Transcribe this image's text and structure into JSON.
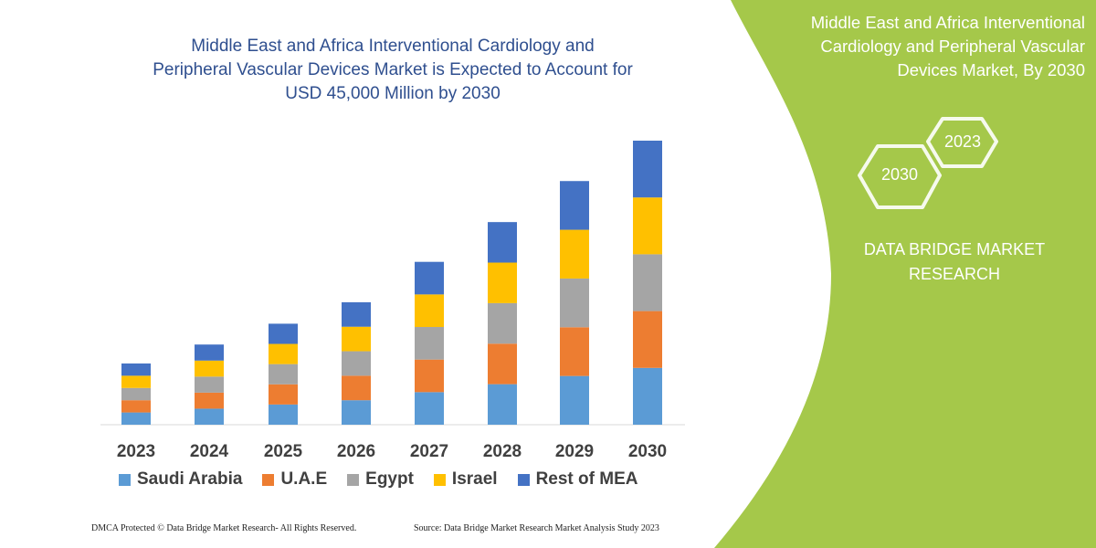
{
  "title": "Middle East and Africa Interventional Cardiology and Peripheral Vascular Devices Market is Expected to Account for USD 45,000 Million by 2030",
  "title_lines": [
    "Middle East and Africa Interventional Cardiology and",
    "Peripheral Vascular Devices Market is Expected to Account for",
    "USD 45,000 Million by 2030"
  ],
  "panel": {
    "title_lines": [
      "Middle East and Africa Interventional",
      "Cardiology and Peripheral Vascular",
      "Devices Market, By 2030"
    ],
    "hex_years": [
      "2023",
      "2030"
    ],
    "brand_lines": [
      "DATA BRIDGE MARKET",
      "RESEARCH"
    ],
    "color": "#a5c84a"
  },
  "footer": {
    "left": "DMCA Protected © Data Bridge Market Research-  All Rights Reserved.",
    "right": "Source: Data Bridge Market Research  Market Analysis Study 2023"
  },
  "chart_data": {
    "type": "bar",
    "stacked": true,
    "categories": [
      "2023",
      "2024",
      "2025",
      "2026",
      "2027",
      "2028",
      "2029",
      "2030"
    ],
    "series": [
      {
        "name": "Saudi Arabia",
        "color": "#5b9bd5",
        "values": [
          1940,
          2540,
          3200,
          3880,
          5160,
          6420,
          7720,
          9000
        ]
      },
      {
        "name": "U.A.E",
        "color": "#ed7d31",
        "values": [
          1940,
          2540,
          3200,
          3880,
          5160,
          6420,
          7720,
          9000
        ]
      },
      {
        "name": "Egypt",
        "color": "#a5a5a5",
        "values": [
          1940,
          2540,
          3200,
          3880,
          5160,
          6420,
          7720,
          9000
        ]
      },
      {
        "name": "Israel",
        "color": "#ffc000",
        "values": [
          1940,
          2540,
          3200,
          3880,
          5160,
          6420,
          7720,
          9000
        ]
      },
      {
        "name": "Rest of MEA",
        "color": "#4472c4",
        "values": [
          1940,
          2540,
          3200,
          3880,
          5160,
          6420,
          7720,
          9000
        ]
      }
    ],
    "ylim": [
      0,
      45000
    ],
    "grid": false,
    "legend": "bottom"
  }
}
